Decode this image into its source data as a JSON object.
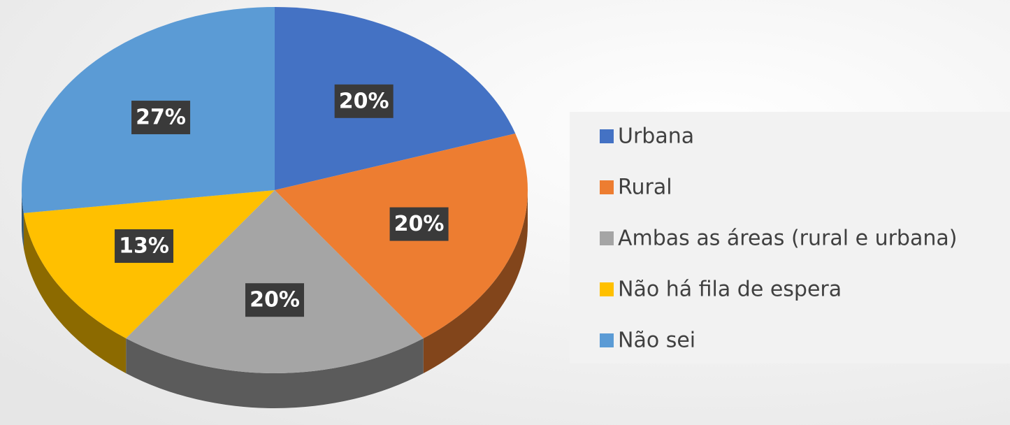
{
  "chart_data": {
    "type": "pie",
    "categories": [
      "Urbana",
      "Rural",
      "Ambas as áreas (rural e urbana)",
      "Não há fila de espera",
      "Não sei"
    ],
    "values": [
      20,
      20,
      20,
      13,
      27
    ],
    "value_labels": [
      "20%",
      "20%",
      "20%",
      "13%",
      "27%"
    ],
    "colors": [
      "#4472c4",
      "#ed7d31",
      "#a5a5a5",
      "#ffc000",
      "#5b9bd5"
    ],
    "legend": "right"
  }
}
